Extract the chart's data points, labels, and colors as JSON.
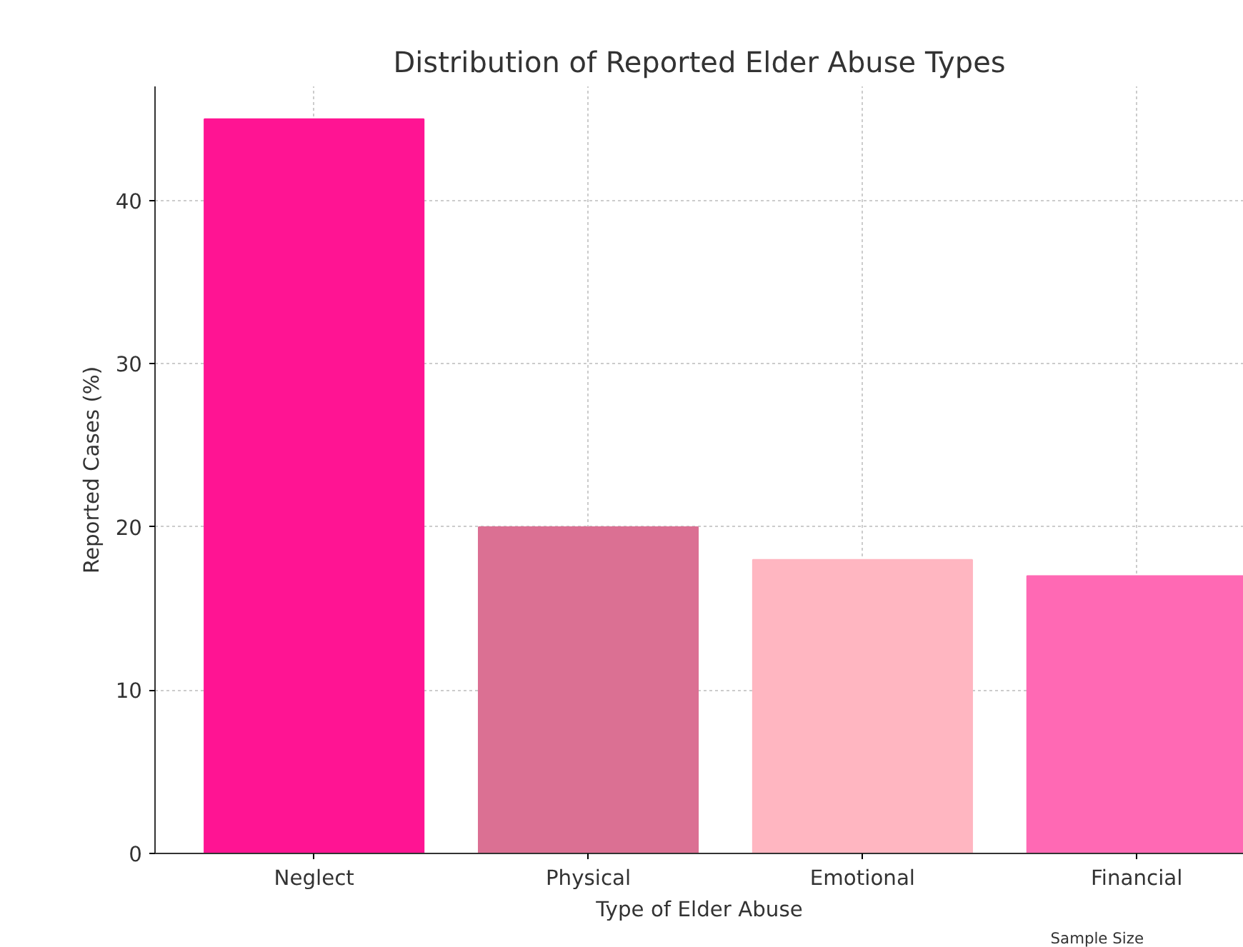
{
  "chart_data": {
    "type": "bar",
    "title": "Distribution of Reported Elder Abuse Types",
    "xlabel": "Type of Elder Abuse",
    "ylabel": "Reported Cases (%)",
    "categories": [
      "Neglect",
      "Physical",
      "Emotional",
      "Financial"
    ],
    "values": [
      45,
      20,
      18,
      17
    ],
    "colors": [
      "#ff1493",
      "#db7093",
      "#ffb6c1",
      "#ff69b4"
    ],
    "ylim": [
      0,
      47
    ],
    "yticks": [
      0,
      10,
      20,
      30,
      40
    ],
    "grid": true,
    "annotations": [
      "Sample Size"
    ]
  }
}
